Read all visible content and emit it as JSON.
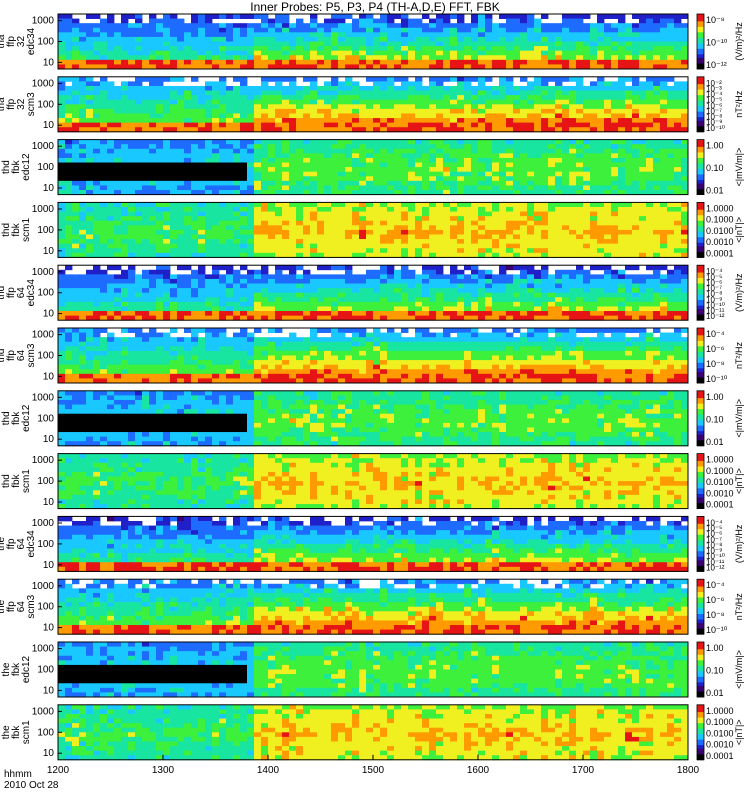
{
  "title": "Inner Probes: P5, P3, P4 (TH-A,D,E) FFT, FBK",
  "footer": {
    "line1": "hhmm",
    "line2": "2010 Oct 28"
  },
  "chart_data": {
    "type": "heatmap",
    "x_axis": {
      "tick_labels": [
        "1200",
        "1300",
        "1400",
        "1500",
        "1600",
        "1700",
        "1800"
      ],
      "range": [
        "12:00",
        "18:00"
      ]
    },
    "panels": [
      {
        "label": [
          "tha",
          "ffp",
          "32",
          "edc34"
        ],
        "yticks": [
          "1000",
          "100",
          "10"
        ],
        "cb_ticks": [
          "10⁻⁸",
          "10⁻¹⁰",
          "10⁻¹²"
        ],
        "cb_unit": "(V/m)²/Hz",
        "kind": "E"
      },
      {
        "label": [
          "tha",
          "ffp",
          "32",
          "scm3"
        ],
        "yticks": [
          "1000",
          "100",
          "10"
        ],
        "cb_ticks": [
          "10⁻²",
          "10⁻³",
          "10⁻⁴",
          "10⁻⁵",
          "10⁻⁶",
          "10⁻⁷",
          "10⁻⁸",
          "10⁻⁹",
          "10⁻¹⁰"
        ],
        "cb_unit": "nT²/Hz",
        "kind": "B"
      },
      {
        "label": [
          "thd",
          "fbk",
          "edc12"
        ],
        "yticks": [
          "1000",
          "100",
          "10"
        ],
        "cb_ticks": [
          "1.00",
          "0.10",
          "0.01"
        ],
        "cb_unit": "<|mV/m|>",
        "kind": "FE"
      },
      {
        "label": [
          "thd",
          "fbk",
          "scm1"
        ],
        "yticks": [
          "1000",
          "100",
          "10"
        ],
        "cb_ticks": [
          "1.0000",
          "0.1000",
          "0.0100",
          "0.0010",
          "0.0001"
        ],
        "cb_unit": "<|nT|>",
        "kind": "FB"
      },
      {
        "label": [
          "thd",
          "ffp",
          "64",
          "edc34"
        ],
        "yticks": [
          "1000",
          "100",
          "10"
        ],
        "cb_ticks": [
          "10⁻⁴",
          "10⁻⁵",
          "10⁻⁶",
          "10⁻⁷",
          "10⁻⁸",
          "10⁻⁹",
          "10⁻¹⁰",
          "10⁻¹¹",
          "10⁻¹²"
        ],
        "cb_unit": "(V/m)²/Hz",
        "kind": "E"
      },
      {
        "label": [
          "thd",
          "ffp",
          "64",
          "scm3"
        ],
        "yticks": [
          "1000",
          "100",
          "10"
        ],
        "cb_ticks": [
          "10⁻⁴",
          "10⁻⁶",
          "10⁻⁸",
          "10⁻¹⁰"
        ],
        "cb_unit": "nT²/Hz",
        "kind": "B"
      },
      {
        "label": [
          "thd",
          "fbk",
          "edc12"
        ],
        "yticks": [
          "1000",
          "100",
          "10"
        ],
        "cb_ticks": [
          "1.00",
          "0.10",
          "0.01"
        ],
        "cb_unit": "<|mV/m|>",
        "kind": "FE"
      },
      {
        "label": [
          "thd",
          "fbk",
          "scm1"
        ],
        "yticks": [
          "1000",
          "100",
          "10"
        ],
        "cb_ticks": [
          "1.0000",
          "0.1000",
          "0.0100",
          "0.0010",
          "0.0001"
        ],
        "cb_unit": "<|nT|>",
        "kind": "FB"
      },
      {
        "label": [
          "the",
          "ffp",
          "64",
          "edc34"
        ],
        "yticks": [
          "1000",
          "100",
          "10"
        ],
        "cb_ticks": [
          "10⁻⁴",
          "10⁻⁵",
          "10⁻⁶",
          "10⁻⁷",
          "10⁻⁸",
          "10⁻⁹",
          "10⁻¹⁰",
          "10⁻¹¹",
          "10⁻¹²"
        ],
        "cb_unit": "(V/m)²/Hz",
        "kind": "E"
      },
      {
        "label": [
          "the",
          "ffp",
          "64",
          "scm3"
        ],
        "yticks": [
          "1000",
          "100",
          "10"
        ],
        "cb_ticks": [
          "10⁻⁴",
          "10⁻⁶",
          "10⁻⁸",
          "10⁻¹⁰"
        ],
        "cb_unit": "nT²/Hz",
        "kind": "B"
      },
      {
        "label": [
          "the",
          "fbk",
          "edc12"
        ],
        "yticks": [
          "1000",
          "100",
          "10"
        ],
        "cb_ticks": [
          "1.00",
          "0.10",
          "0.01"
        ],
        "cb_unit": "<|mV/m|>",
        "kind": "FE"
      },
      {
        "label": [
          "the",
          "fbk",
          "scm1"
        ],
        "yticks": [
          "1000",
          "100",
          "10"
        ],
        "cb_ticks": [
          "1.0000",
          "0.1000",
          "0.0100",
          "0.0010",
          "0.0001"
        ],
        "cb_unit": "<|nT|>",
        "kind": "FB"
      }
    ],
    "colormap": [
      "#000000",
      "#3b0070",
      "#2020c8",
      "#1e6cff",
      "#19c8ff",
      "#18e6a0",
      "#3cf03c",
      "#f0f020",
      "#ff9a00",
      "#e61414"
    ],
    "grid": false
  }
}
